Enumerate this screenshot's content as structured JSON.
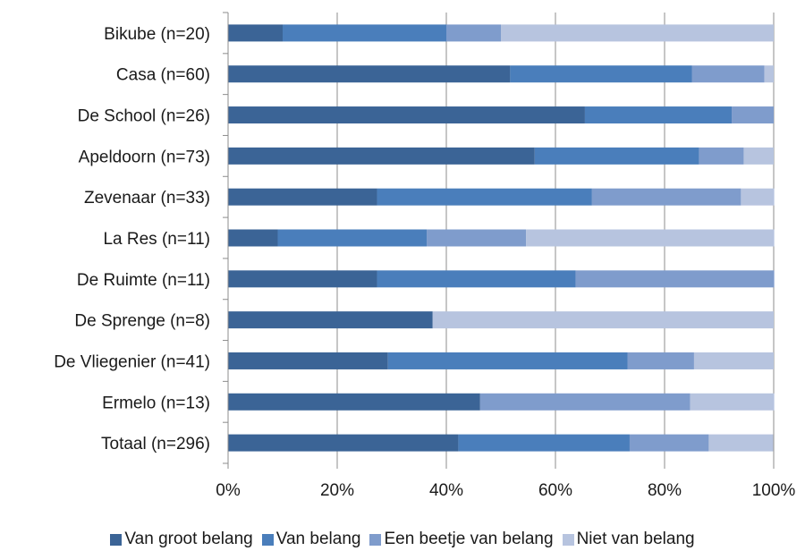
{
  "chart_data": {
    "type": "bar",
    "orientation": "horizontal",
    "stacked": "percent",
    "categories": [
      "Bikube (n=20)",
      "Casa (n=60)",
      "De School (n=26)",
      "Apeldoorn (n=73)",
      "Zevenaar (n=33)",
      "La Res (n=11)",
      "De Ruimte (n=11)",
      "De Sprenge (n=8)",
      "De Vliegenier (n=41)",
      "Ermelo (n=13)",
      "Totaal (n=296)"
    ],
    "series": [
      {
        "name": "Van groot belang",
        "color": "#3b6496",
        "values": [
          10,
          51.7,
          65.4,
          56.2,
          27.3,
          9.1,
          27.3,
          37.5,
          29.3,
          46.2,
          42.2
        ]
      },
      {
        "name": "Van belang",
        "color": "#4a7ebb",
        "values": [
          30,
          33.3,
          26.9,
          30.1,
          39.4,
          27.3,
          36.4,
          0,
          43.9,
          0,
          31.4
        ]
      },
      {
        "name": "Een beetje van belang",
        "color": "#7f9ccc",
        "values": [
          10,
          13.3,
          7.7,
          8.2,
          27.3,
          18.2,
          36.4,
          0,
          12.2,
          38.5,
          14.5
        ]
      },
      {
        "name": "Niet van belang",
        "color": "#b7c4df",
        "values": [
          50,
          1.7,
          0,
          5.5,
          6.1,
          45.5,
          0,
          62.5,
          14.6,
          15.4,
          11.8
        ]
      }
    ],
    "x_ticks": [
      "0%",
      "20%",
      "40%",
      "60%",
      "80%",
      "100%"
    ],
    "xlim": [
      0,
      100
    ],
    "grid": true,
    "legend_position": "bottom",
    "title": "",
    "xlabel": "",
    "ylabel": ""
  }
}
